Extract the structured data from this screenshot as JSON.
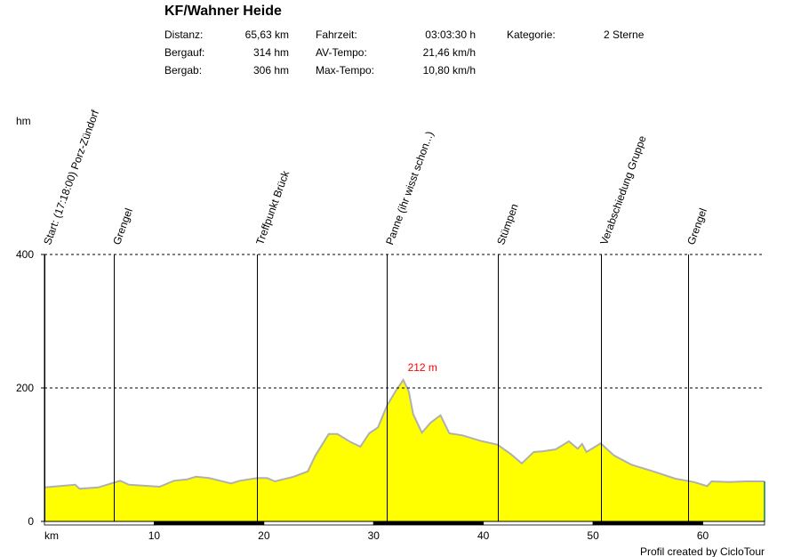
{
  "header": {
    "title": "KF/Wahner Heide",
    "stats": [
      {
        "label": "Distanz:",
        "value": "65,63 km"
      },
      {
        "label": "Bergauf:",
        "value": "314 hm"
      },
      {
        "label": "Bergab:",
        "value": "306 hm"
      },
      {
        "label": "Fahrzeit:",
        "value": "03:03:30 h"
      },
      {
        "label": "AV-Tempo:",
        "value": "21,46 km/h"
      },
      {
        "label": "Max-Tempo:",
        "value": "10,80 km/h"
      },
      {
        "label": "Kategorie:",
        "value": "2 Sterne"
      }
    ]
  },
  "footer": "Profil created by CicloTour",
  "colors": {
    "fill": "#ffff00",
    "outline": "#b0b0b0",
    "max_label": "#ff0000"
  },
  "chart_data": {
    "type": "area",
    "xlabel": "km",
    "ylabel": "hm",
    "xlim": [
      0,
      65.63
    ],
    "ylim": [
      0,
      400
    ],
    "xticks": [
      10,
      20,
      30,
      40,
      50,
      60
    ],
    "yticks": [
      0,
      200,
      400
    ],
    "grid": "dashed horizontal at 200 and 400",
    "max_label": "212 m",
    "max_point": [
      32.7,
      212
    ],
    "waypoints": [
      {
        "km": 0,
        "name": "Start: (17:18:00) Porz-Zündorf"
      },
      {
        "km": 6.3,
        "name": "Grengel"
      },
      {
        "km": 19.4,
        "name": "Treffpunkt Brück"
      },
      {
        "km": 31.2,
        "name": "Panne (ihr wisst schon...)"
      },
      {
        "km": 41.3,
        "name": "Stümpen"
      },
      {
        "km": 50.7,
        "name": "Verabschiedung Gruppe"
      },
      {
        "km": 58.7,
        "name": "Grengel"
      }
    ],
    "x": [
      0,
      2.8,
      3.2,
      4.9,
      5.7,
      6.9,
      7.7,
      10.5,
      11.8,
      13,
      13.8,
      15,
      17,
      17.8,
      19.4,
      20.3,
      21,
      22.7,
      24,
      24.7,
      25.3,
      25.9,
      26.7,
      27.9,
      28.8,
      29.6,
      30.4,
      31.2,
      32,
      32.7,
      33.2,
      33.6,
      34.4,
      35.2,
      36.1,
      36.9,
      38.1,
      39.7,
      41.3,
      42.5,
      43.5,
      44.6,
      45.4,
      46.6,
      47.8,
      48.6,
      49,
      49.4,
      50.7,
      51.9,
      53.5,
      55.5,
      57.5,
      59.2,
      60.4,
      60.8,
      62.4,
      64,
      65.63
    ],
    "y": [
      51,
      55,
      49,
      51,
      55,
      61,
      55,
      52,
      61,
      63,
      67,
      65,
      57,
      61,
      65,
      65,
      60,
      67,
      75,
      99,
      115,
      131,
      131,
      119,
      112,
      132,
      141,
      173,
      195,
      212,
      195,
      161,
      133,
      148,
      159,
      132,
      129,
      121,
      115,
      101,
      87,
      104,
      105,
      108,
      120,
      109,
      116,
      104,
      117,
      99,
      85,
      75,
      64,
      59,
      53,
      60,
      59,
      60,
      60
    ]
  }
}
